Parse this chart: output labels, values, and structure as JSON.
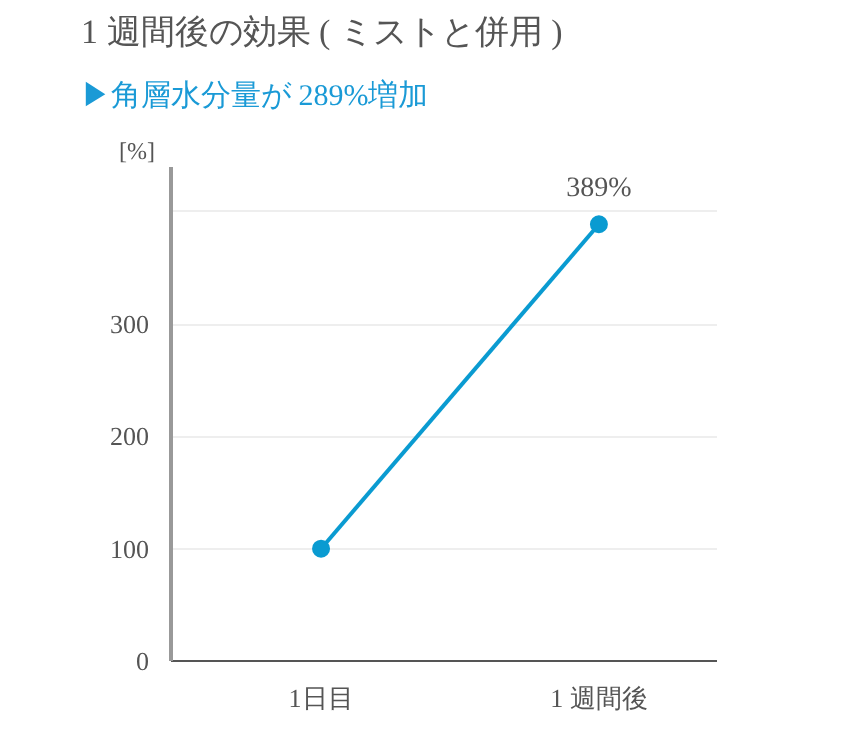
{
  "chart_data": {
    "type": "line",
    "title": "1 週間後の効果 ( ミストと併用 )",
    "subtitle": "▶角層水分量が 289%増加",
    "ylabel": "[%]",
    "categories": [
      "1日目",
      "1 週間後"
    ],
    "series": [
      {
        "color": "#0a9bd1",
        "values": [
          100,
          389
        ],
        "value_labels": [
          null,
          "389%"
        ]
      }
    ],
    "ylim": [
      0,
      440
    ],
    "yticks": [
      0,
      100,
      200,
      300,
      {
        "value": 400,
        "label": null
      }
    ],
    "grid": "y",
    "marker": "circle",
    "line_style": "solid"
  }
}
